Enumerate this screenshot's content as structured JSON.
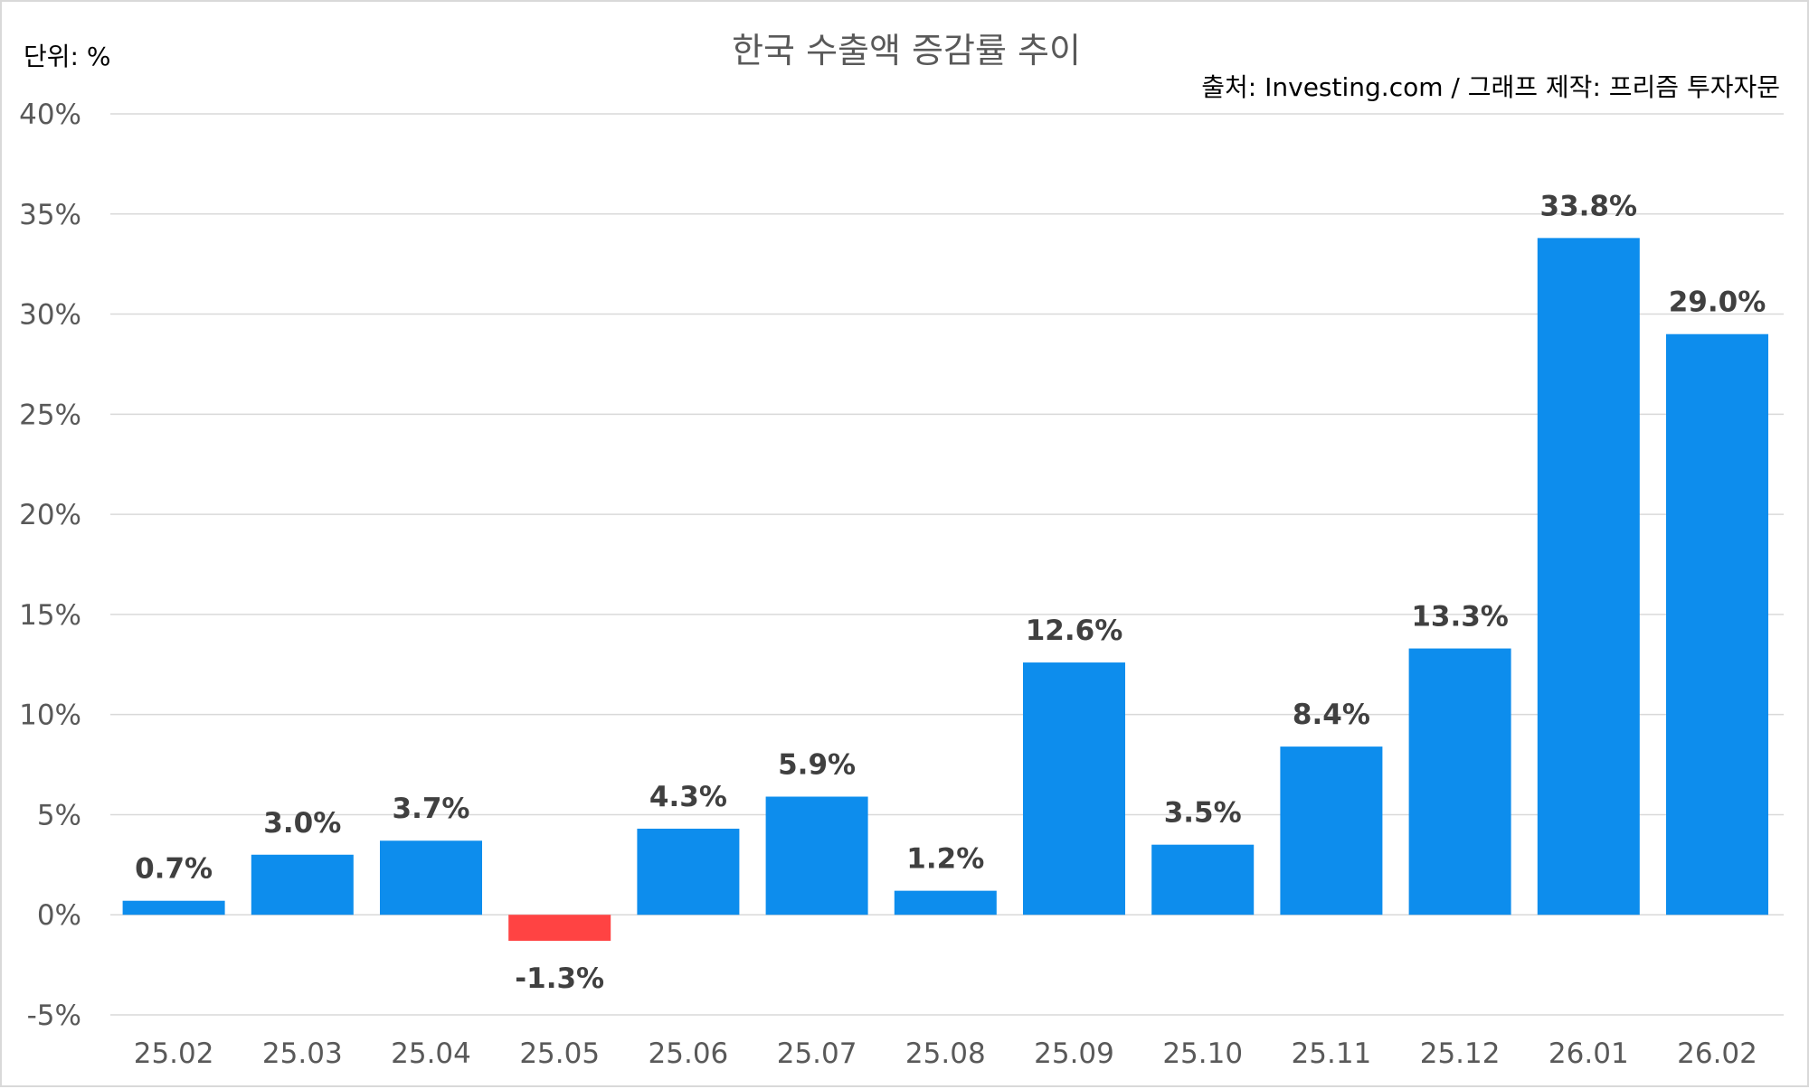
{
  "chart_data": {
    "type": "bar",
    "title": "한국 수출액 증감률 추이",
    "unit_label": "단위: %",
    "source_label": "출처: Investing.com / 그래프 제작: 프리즘 투자자문",
    "categories": [
      "25.02",
      "25.03",
      "25.04",
      "25.05",
      "25.06",
      "25.07",
      "25.08",
      "25.09",
      "25.10",
      "25.11",
      "25.12",
      "26.01",
      "26.02"
    ],
    "values": [
      0.7,
      3.0,
      3.7,
      -1.3,
      4.3,
      5.9,
      1.2,
      12.6,
      3.5,
      8.4,
      13.3,
      33.8,
      29.0
    ],
    "data_labels": [
      "0.7%",
      "3.0%",
      "3.7%",
      "-1.3%",
      "4.3%",
      "5.9%",
      "1.2%",
      "12.6%",
      "3.5%",
      "8.4%",
      "13.3%",
      "33.8%",
      "29.0%"
    ],
    "ylim": [
      -5,
      40
    ],
    "yticks": [
      -5,
      0,
      5,
      10,
      15,
      20,
      25,
      30,
      35,
      40
    ],
    "ytick_labels": [
      "-5%",
      "0%",
      "5%",
      "10%",
      "15%",
      "20%",
      "25%",
      "30%",
      "35%",
      "40%"
    ],
    "grid": true,
    "legend": "none",
    "colors": {
      "positive": "#0d8ded",
      "negative": "#ff4343",
      "grid": "#d9d9d9"
    }
  }
}
